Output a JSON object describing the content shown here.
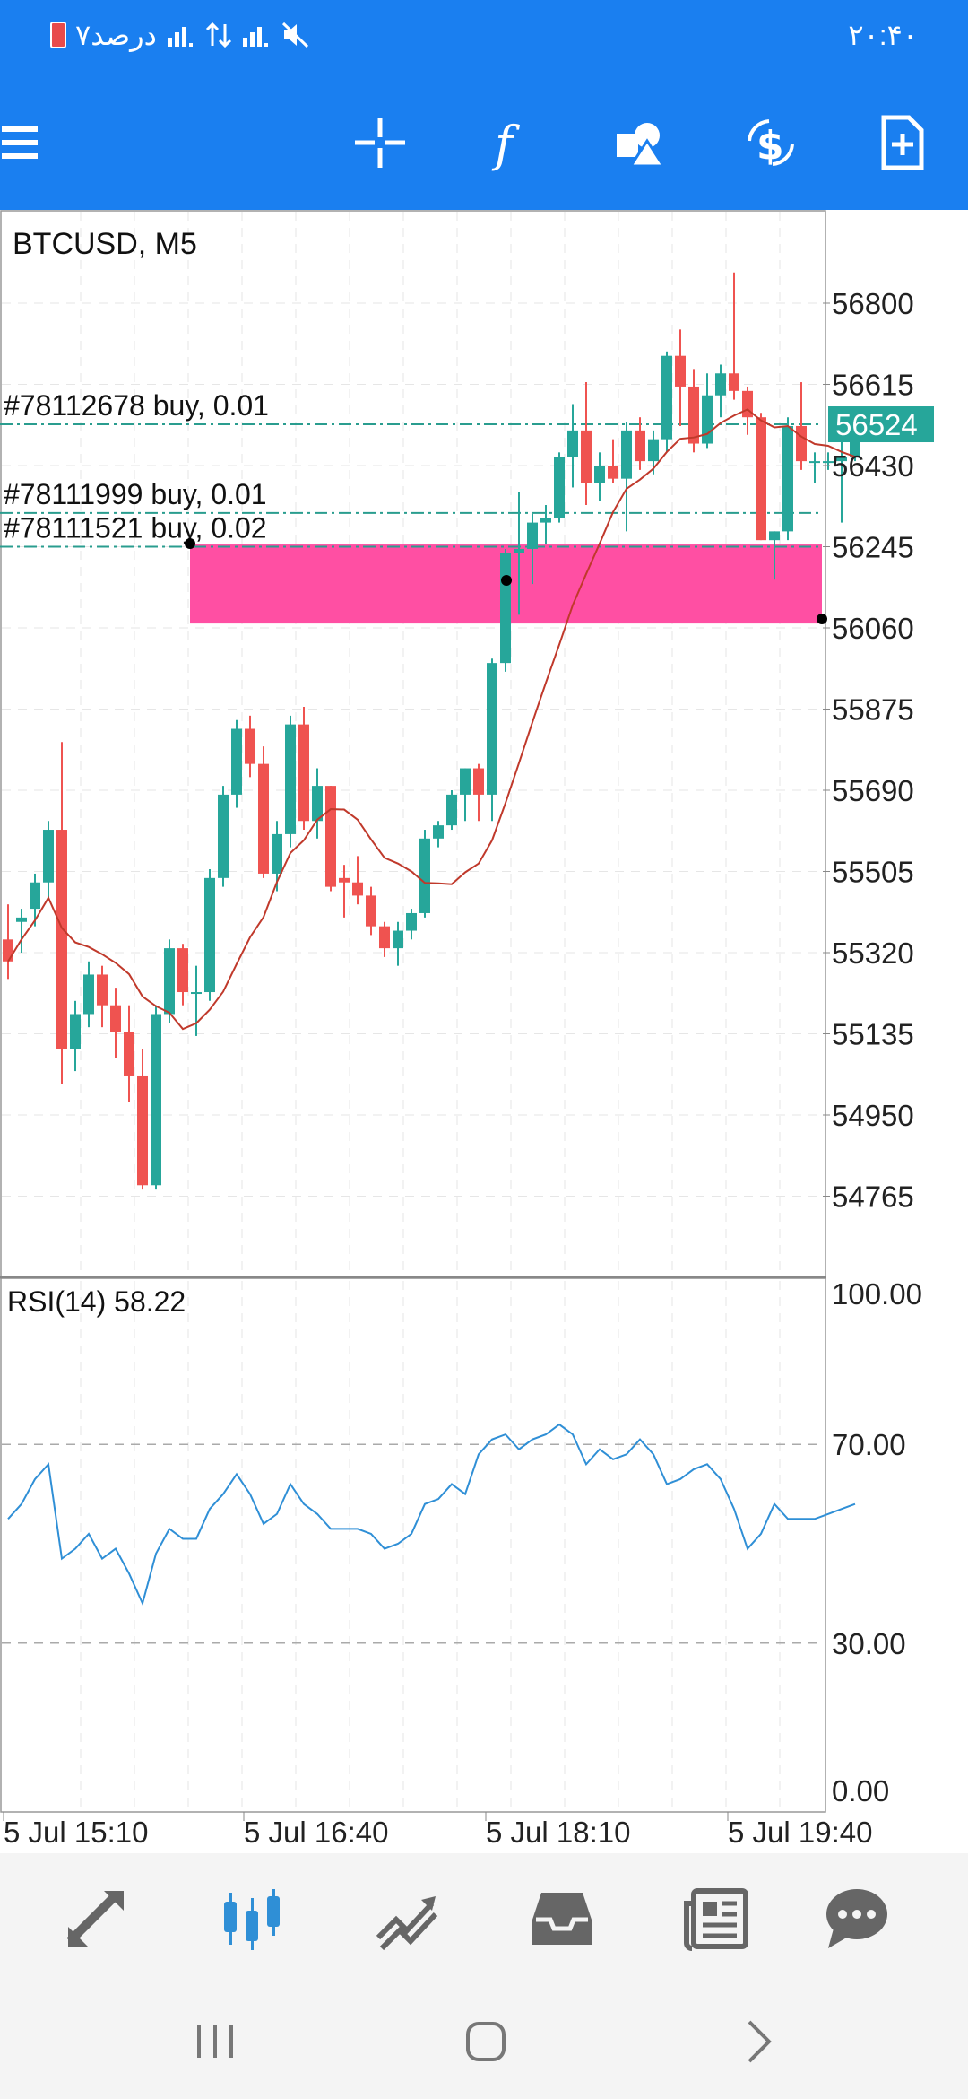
{
  "status_bar": {
    "time": "۲۰:۴۰",
    "left_text": "۷درصد",
    "signal_icons": [
      "signal-icon",
      "data-icon",
      "signal-icon",
      "mute-icon"
    ]
  },
  "toolbar": {
    "buttons": [
      "menu-icon",
      "crosshair-icon",
      "function-icon",
      "objects-icon",
      "dollar-icon",
      "new-order-icon"
    ],
    "accent_color": "#1a7ff0"
  },
  "chart": {
    "symbol_label": "BTCUSD, M5",
    "current_price": "56524",
    "price_ticks": [
      "56800",
      "56615",
      "56430",
      "56245",
      "56060",
      "55875",
      "55690",
      "55505",
      "55320",
      "55135",
      "54950",
      "54765"
    ],
    "orders": [
      {
        "label": "#78112678 buy, 0.01",
        "price": 56524
      },
      {
        "label": "#78111999 buy, 0.01",
        "price": 56322
      },
      {
        "label": "#78111521 buy, 0.02",
        "price": 56245
      }
    ],
    "zone_color": "#ff4fa3",
    "bull_color": "#26a69a",
    "bear_color": "#ef5350",
    "ma_color": "#c0392b"
  },
  "rsi": {
    "label": "RSI(14) 58.22",
    "ticks": [
      "100.00",
      "70.00",
      "30.00",
      "0.00"
    ],
    "line_color": "#2f8fd6"
  },
  "time_axis": [
    "5 Jul 15:10",
    "5 Jul 16:40",
    "5 Jul 18:10",
    "5 Jul 19:40"
  ],
  "chart_data": {
    "type": "candlestick",
    "candles": [
      [
        55350,
        55430,
        55260,
        55300
      ],
      [
        55390,
        55420,
        55320,
        55400
      ],
      [
        55420,
        55500,
        55380,
        55480
      ],
      [
        55480,
        55620,
        55440,
        55600
      ],
      [
        55600,
        55800,
        55020,
        55100
      ],
      [
        55100,
        55210,
        55050,
        55180
      ],
      [
        55180,
        55300,
        55150,
        55270
      ],
      [
        55270,
        55290,
        55150,
        55200
      ],
      [
        55200,
        55240,
        55080,
        55140
      ],
      [
        55140,
        55200,
        54980,
        55040
      ],
      [
        55040,
        55100,
        54780,
        54790
      ],
      [
        54790,
        55200,
        54780,
        55180
      ],
      [
        55180,
        55350,
        55160,
        55330
      ],
      [
        55330,
        55340,
        55200,
        55230
      ],
      [
        55230,
        55290,
        55130,
        55230
      ],
      [
        55230,
        55510,
        55210,
        55490
      ],
      [
        55490,
        55700,
        55470,
        55680
      ],
      [
        55680,
        55850,
        55650,
        55830
      ],
      [
        55830,
        55860,
        55720,
        55750
      ],
      [
        55750,
        55790,
        55490,
        55500
      ],
      [
        55500,
        55620,
        55460,
        55590
      ],
      [
        55590,
        55860,
        55560,
        55840
      ],
      [
        55840,
        55880,
        55600,
        55620
      ],
      [
        55620,
        55740,
        55580,
        55700
      ],
      [
        55700,
        55700,
        55460,
        55470
      ],
      [
        55490,
        55520,
        55400,
        55480
      ],
      [
        55480,
        55540,
        55430,
        55450
      ],
      [
        55450,
        55470,
        55360,
        55380
      ],
      [
        55380,
        55390,
        55310,
        55330
      ],
      [
        55330,
        55390,
        55290,
        55370
      ],
      [
        55370,
        55420,
        55350,
        55410
      ],
      [
        55410,
        55600,
        55400,
        55580
      ],
      [
        55580,
        55620,
        55560,
        55610
      ],
      [
        55610,
        55690,
        55600,
        55680
      ],
      [
        55680,
        55740,
        55620,
        55740
      ],
      [
        55740,
        55750,
        55620,
        55680
      ],
      [
        55680,
        55990,
        55620,
        55980
      ],
      [
        55980,
        56240,
        55960,
        56230
      ],
      [
        56230,
        56370,
        56090,
        56240
      ],
      [
        56240,
        56320,
        56160,
        56300
      ],
      [
        56300,
        56340,
        56250,
        56310
      ],
      [
        56310,
        56460,
        56300,
        56450
      ],
      [
        56450,
        56570,
        56380,
        56510
      ],
      [
        56510,
        56620,
        56340,
        56390
      ],
      [
        56390,
        56460,
        56350,
        56430
      ],
      [
        56430,
        56490,
        56390,
        56400
      ],
      [
        56400,
        56530,
        56280,
        56510
      ],
      [
        56510,
        56540,
        56420,
        56440
      ],
      [
        56440,
        56510,
        56410,
        56490
      ],
      [
        56490,
        56690,
        56460,
        56680
      ],
      [
        56680,
        56740,
        56520,
        56610
      ],
      [
        56610,
        56650,
        56460,
        56480
      ],
      [
        56480,
        56640,
        56470,
        56590
      ],
      [
        56590,
        56660,
        56540,
        56640
      ],
      [
        56640,
        56870,
        56580,
        56600
      ],
      [
        56600,
        56610,
        56500,
        56540
      ],
      [
        56540,
        56550,
        56260,
        56260
      ],
      [
        56260,
        56280,
        56170,
        56280
      ],
      [
        56280,
        56540,
        56260,
        56520
      ],
      [
        56520,
        56620,
        56420,
        56440
      ],
      [
        56440,
        56460,
        56390,
        56440
      ],
      [
        56440,
        56460,
        56420,
        56440
      ],
      [
        56440,
        56500,
        56300,
        56450
      ],
      [
        56450,
        56540,
        56440,
        56530
      ]
    ],
    "rsi": [
      55,
      58,
      63,
      66,
      47,
      49,
      52,
      47,
      49,
      44,
      38,
      48,
      53,
      51,
      51,
      57,
      60,
      64,
      60,
      54,
      56,
      62,
      58,
      56,
      53,
      53,
      53,
      52,
      49,
      50,
      52,
      58,
      59,
      62,
      60,
      68,
      71,
      72,
      69,
      71,
      72,
      74,
      72,
      66,
      69,
      67,
      68,
      71,
      68,
      62,
      63,
      65,
      66,
      63,
      57,
      49,
      52,
      58,
      55,
      55,
      55,
      56,
      57,
      58
    ],
    "ma_start_y": 55320,
    "ylim": [
      54600,
      56950
    ]
  }
}
